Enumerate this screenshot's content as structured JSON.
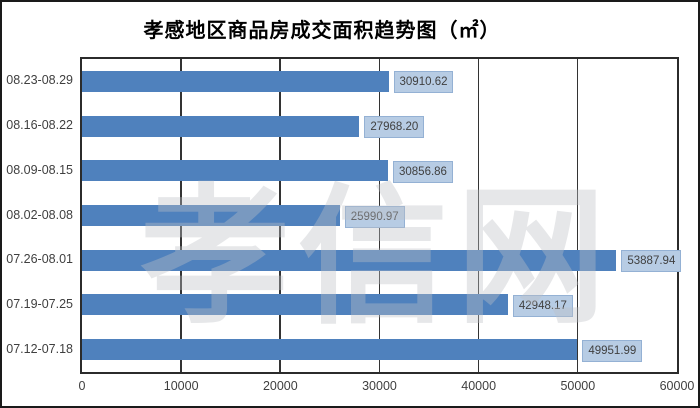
{
  "page": {
    "background": "#ffffff",
    "outer_border_color": "#1a1a1a"
  },
  "chart_data": {
    "type": "bar",
    "orientation": "horizontal",
    "title": "孝感地区商品房成交面积趋势图（㎡）",
    "categories": [
      "08.23-08.29",
      "08.16-08.22",
      "08.09-08.15",
      "08.02-08.08",
      "07.26-08.01",
      "07.19-07.25",
      "07.12-07.18"
    ],
    "values": [
      30910.62,
      27968.2,
      30856.86,
      25990.97,
      53887.94,
      42948.17,
      49951.99
    ],
    "value_labels": [
      "30910.62",
      "27968.20",
      "30856.86",
      "25990.97",
      "53887.94",
      "42948.17",
      "49951.99"
    ],
    "xlim": [
      0,
      60000
    ],
    "x_ticks": [
      0,
      10000,
      20000,
      30000,
      40000,
      50000,
      60000
    ],
    "x_tick_labels": [
      "0",
      "10000",
      "20000",
      "30000",
      "40000",
      "50000",
      "60000"
    ],
    "grid": "vertical-on",
    "legend": "none",
    "bar_color": "#4f81bd",
    "label_box_fill": "#b7cce4",
    "label_box_border": "#94b1d4",
    "label_text_color": "#404040",
    "axis_text_color": "#3f3f3f",
    "watermark": "孝信网"
  }
}
